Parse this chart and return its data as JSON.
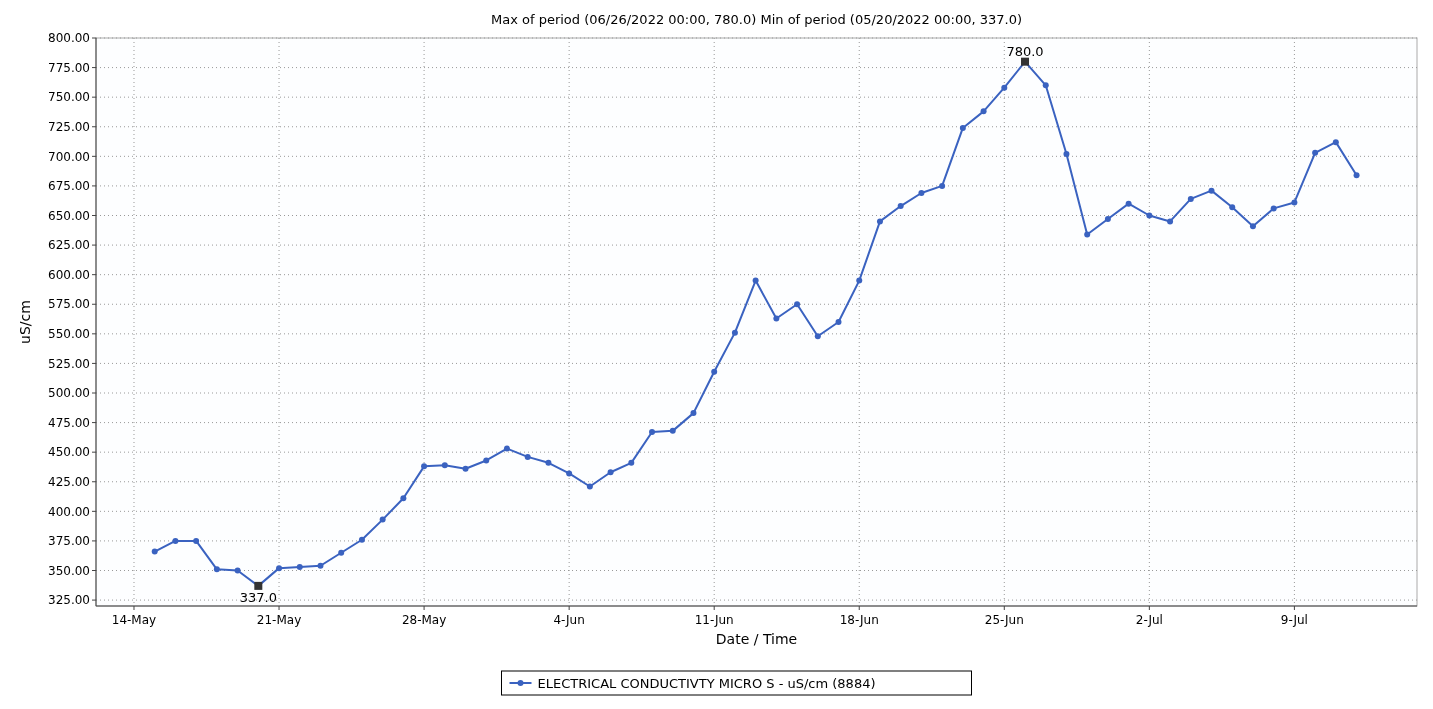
{
  "chart_data": {
    "type": "line",
    "title": "Max of period (06/26/2022 00:00, 780.0) Min of period (05/20/2022 00:00, 337.0)",
    "xlabel": "Date / Time",
    "ylabel": "uS/cm",
    "x": [
      "2022-05-15",
      "2022-05-16",
      "2022-05-17",
      "2022-05-18",
      "2022-05-19",
      "2022-05-20",
      "2022-05-21",
      "2022-05-22",
      "2022-05-23",
      "2022-05-24",
      "2022-05-25",
      "2022-05-26",
      "2022-05-27",
      "2022-05-28",
      "2022-05-29",
      "2022-05-30",
      "2022-05-31",
      "2022-06-01",
      "2022-06-02",
      "2022-06-03",
      "2022-06-04",
      "2022-06-05",
      "2022-06-06",
      "2022-06-07",
      "2022-06-08",
      "2022-06-09",
      "2022-06-10",
      "2022-06-11",
      "2022-06-12",
      "2022-06-13",
      "2022-06-14",
      "2022-06-15",
      "2022-06-16",
      "2022-06-17",
      "2022-06-18",
      "2022-06-19",
      "2022-06-20",
      "2022-06-21",
      "2022-06-22",
      "2022-06-23",
      "2022-06-24",
      "2022-06-25",
      "2022-06-26",
      "2022-06-27",
      "2022-06-28",
      "2022-06-29",
      "2022-06-30",
      "2022-07-01",
      "2022-07-02",
      "2022-07-03",
      "2022-07-04",
      "2022-07-05",
      "2022-07-06",
      "2022-07-07",
      "2022-07-08",
      "2022-07-09",
      "2022-07-10",
      "2022-07-11",
      "2022-07-12"
    ],
    "series": [
      {
        "name": "ELECTRICAL CONDUCTIVTY MICRO S - uS/cm (8884)",
        "color": "#3a62c0",
        "values": [
          366,
          375,
          375,
          351,
          350,
          337,
          352,
          353,
          354,
          365,
          376,
          393,
          411,
          438,
          439,
          436,
          443,
          453,
          446,
          441,
          432,
          421,
          433,
          441,
          467,
          468,
          483,
          518,
          551,
          595,
          563,
          575,
          548,
          560,
          595,
          645,
          658,
          669,
          675,
          724,
          738,
          758,
          780,
          760,
          702,
          634,
          647,
          660,
          650,
          645,
          664,
          671,
          657,
          641,
          656,
          661,
          703,
          712,
          684
        ]
      }
    ],
    "xlim": [
      "2022-05-12T04:00",
      "2022-07-14T22:00"
    ],
    "xticks": [
      {
        "value": "2022-05-14",
        "label": "14-May"
      },
      {
        "value": "2022-05-21",
        "label": "21-May"
      },
      {
        "value": "2022-05-28",
        "label": "28-May"
      },
      {
        "value": "2022-06-04",
        "label": "4-Jun"
      },
      {
        "value": "2022-06-11",
        "label": "11-Jun"
      },
      {
        "value": "2022-06-18",
        "label": "18-Jun"
      },
      {
        "value": "2022-06-25",
        "label": "25-Jun"
      },
      {
        "value": "2022-07-02",
        "label": "2-Jul"
      },
      {
        "value": "2022-07-09",
        "label": "9-Jul"
      }
    ],
    "ylim": [
      320,
      800
    ],
    "yticks": [
      {
        "value": 325,
        "label": "325.00"
      },
      {
        "value": 350,
        "label": "350.00"
      },
      {
        "value": 375,
        "label": "375.00"
      },
      {
        "value": 400,
        "label": "400.00"
      },
      {
        "value": 425,
        "label": "425.00"
      },
      {
        "value": 450,
        "label": "450.00"
      },
      {
        "value": 475,
        "label": "475.00"
      },
      {
        "value": 500,
        "label": "500.00"
      },
      {
        "value": 525,
        "label": "525.00"
      },
      {
        "value": 550,
        "label": "550.00"
      },
      {
        "value": 575,
        "label": "575.00"
      },
      {
        "value": 600,
        "label": "600.00"
      },
      {
        "value": 625,
        "label": "625.00"
      },
      {
        "value": 650,
        "label": "650.00"
      },
      {
        "value": 675,
        "label": "675.00"
      },
      {
        "value": 700,
        "label": "700.00"
      },
      {
        "value": 725,
        "label": "725.00"
      },
      {
        "value": 750,
        "label": "750.00"
      },
      {
        "value": 775,
        "label": "775.00"
      },
      {
        "value": 800,
        "label": "800.00"
      }
    ],
    "annotations": [
      {
        "text": "780.0",
        "x": "2022-06-26",
        "y": 780
      },
      {
        "text": "337.0",
        "x": "2022-05-20",
        "y": 337
      }
    ],
    "grid": true,
    "legend": "bottom",
    "marker": "circle",
    "line_style": "solid"
  }
}
